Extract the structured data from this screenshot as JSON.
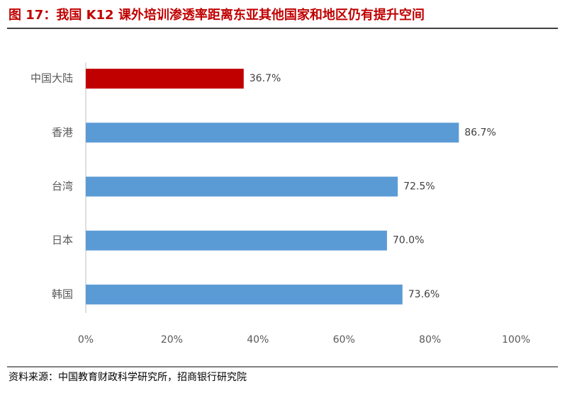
{
  "chart_data": {
    "type": "bar",
    "orientation": "horizontal",
    "title": "图 17：我国 K12 课外培训渗透率距离东亚其他国家和地区仍有提升空间",
    "source": "资料来源：中国教育财政科学研究所，招商银行研究院",
    "categories": [
      "中国大陆",
      "香港",
      "台湾",
      "日本",
      "韩国"
    ],
    "values": [
      36.7,
      86.7,
      72.5,
      70.0,
      73.6
    ],
    "value_labels": [
      "36.7%",
      "86.7%",
      "72.5%",
      "70.0%",
      "73.6%"
    ],
    "colors": [
      "#c00000",
      "#5b9bd5",
      "#5b9bd5",
      "#5b9bd5",
      "#5b9bd5"
    ],
    "xlim": [
      0,
      100
    ],
    "xticks": [
      {
        "value": 0,
        "label": "0%"
      },
      {
        "value": 20,
        "label": "20%"
      },
      {
        "value": 40,
        "label": "40%"
      },
      {
        "value": 60,
        "label": "60%"
      },
      {
        "value": 80,
        "label": "80%"
      },
      {
        "value": 100,
        "label": "100%"
      }
    ],
    "grid": false
  }
}
